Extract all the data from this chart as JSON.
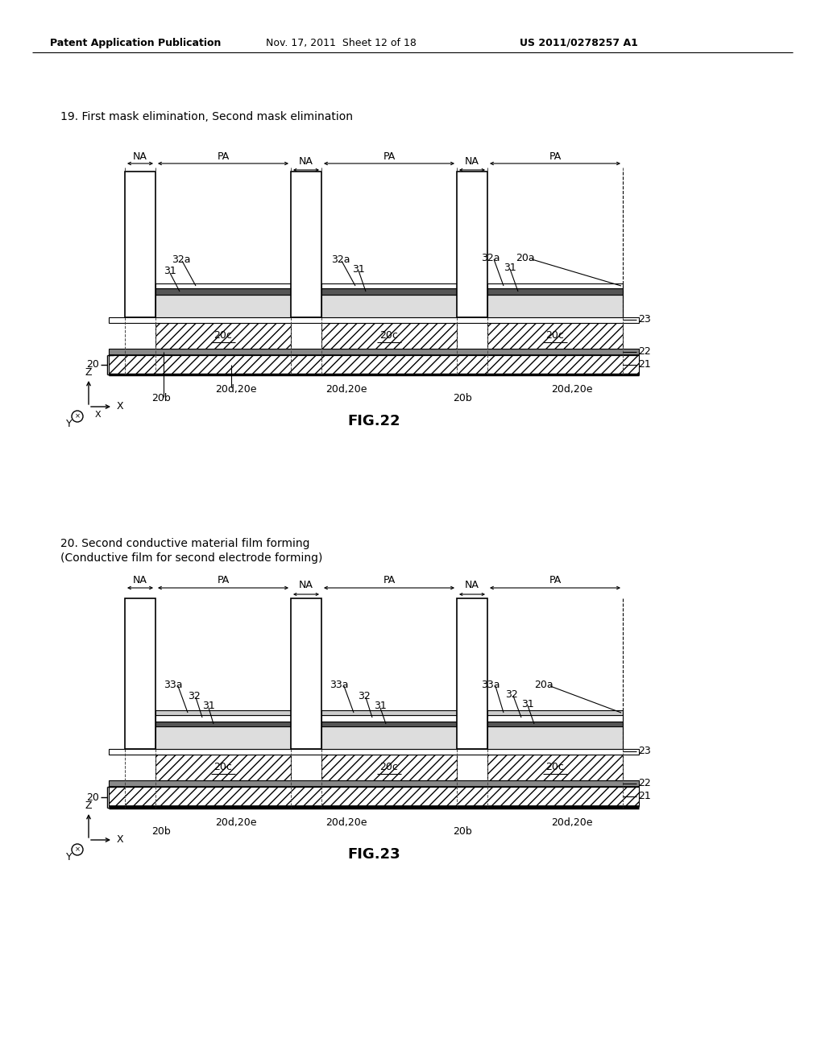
{
  "header_left": "Patent Application Publication",
  "header_mid": "Nov. 17, 2011  Sheet 12 of 18",
  "header_right": "US 2011/0278257 A1",
  "fig22_title": "19. First mask elimination, Second mask elimination",
  "fig23_title_line1": "20. Second conductive material film forming",
  "fig23_title_line2": "(Conductive film for second electrode forming)",
  "fig22_label": "FIG.22",
  "fig23_label": "FIG.23",
  "bg_color": "#ffffff"
}
